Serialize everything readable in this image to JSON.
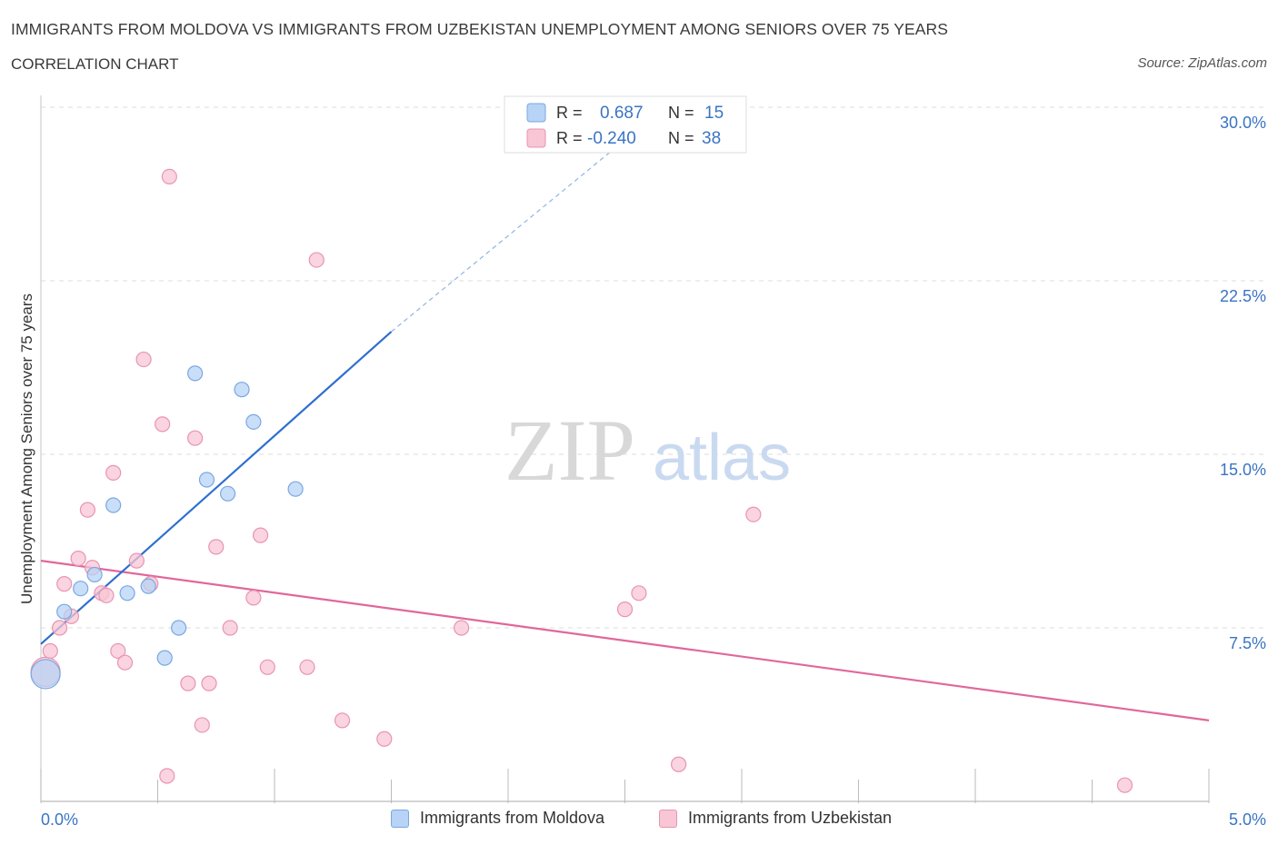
{
  "header": {
    "title": "IMMIGRANTS FROM MOLDOVA VS IMMIGRANTS FROM UZBEKISTAN UNEMPLOYMENT AMONG SENIORS OVER 75 YEARS",
    "subtitle": "CORRELATION CHART",
    "source": "Source: ZipAtlas.com"
  },
  "colors": {
    "moldova_fill": "#b7d3f5",
    "moldova_stroke": "#7aa8e0",
    "moldova_line": "#2e6fcf",
    "uzbekistan_fill": "#f8c6d5",
    "uzbekistan_stroke": "#e895b0",
    "uzbekistan_line": "#e0679a",
    "axis_label": "#3a74c4",
    "grid": "#dddddd"
  },
  "legend": {
    "moldova": {
      "r_label": "R =",
      "r_value": "0.687",
      "n_label": "N =",
      "n_value": "15"
    },
    "uzbekistan": {
      "r_label": "R =",
      "r_value": "-0.240",
      "n_label": "N =",
      "n_value": "38"
    }
  },
  "bottom_legend": {
    "moldova": "Immigrants from Moldova",
    "uzbekistan": "Immigrants from Uzbekistan"
  },
  "watermark": {
    "zip": "ZIP",
    "atlas": "atlas"
  },
  "chart_data": {
    "type": "scatter",
    "title": "IMMIGRANTS FROM MOLDOVA VS IMMIGRANTS FROM UZBEKISTAN UNEMPLOYMENT AMONG SENIORS OVER 75 YEARS",
    "xlabel": "",
    "ylabel": "Unemployment Among Seniors over 75 years",
    "xlim": [
      0,
      5
    ],
    "ylim": [
      0,
      30
    ],
    "x_ticks": [
      "0.0%",
      "5.0%"
    ],
    "y_ticks": [
      {
        "value": 7.5,
        "label": "7.5%"
      },
      {
        "value": 15,
        "label": "15.0%"
      },
      {
        "value": 22.5,
        "label": "22.5%"
      },
      {
        "value": 30,
        "label": "30.0%"
      }
    ],
    "series": [
      {
        "name": "Immigrants from Moldova",
        "r": 0.687,
        "n": 15,
        "points": [
          {
            "x": 0.02,
            "y": 5.5,
            "big": true
          },
          {
            "x": 0.1,
            "y": 8.2
          },
          {
            "x": 0.17,
            "y": 9.2
          },
          {
            "x": 0.23,
            "y": 9.8
          },
          {
            "x": 0.31,
            "y": 12.8
          },
          {
            "x": 0.37,
            "y": 9.0
          },
          {
            "x": 0.46,
            "y": 9.3
          },
          {
            "x": 0.53,
            "y": 6.2
          },
          {
            "x": 0.59,
            "y": 7.5
          },
          {
            "x": 0.66,
            "y": 18.5
          },
          {
            "x": 0.71,
            "y": 13.9
          },
          {
            "x": 0.8,
            "y": 13.3
          },
          {
            "x": 0.86,
            "y": 17.8
          },
          {
            "x": 0.91,
            "y": 16.4
          },
          {
            "x": 1.09,
            "y": 13.5
          }
        ],
        "trend": {
          "x0": 0.0,
          "y0": 6.8,
          "x1": 1.5,
          "y1": 20.3,
          "dash_x1": 2.55,
          "dash_y1": 29.0
        }
      },
      {
        "name": "Immigrants from Uzbekistan",
        "r": -0.24,
        "n": 38,
        "points": [
          {
            "x": 0.02,
            "y": 5.6,
            "big": true
          },
          {
            "x": 0.04,
            "y": 6.5
          },
          {
            "x": 0.08,
            "y": 7.5
          },
          {
            "x": 0.1,
            "y": 9.4
          },
          {
            "x": 0.13,
            "y": 8.0
          },
          {
            "x": 0.16,
            "y": 10.5
          },
          {
            "x": 0.2,
            "y": 12.6
          },
          {
            "x": 0.22,
            "y": 10.1
          },
          {
            "x": 0.26,
            "y": 9.0
          },
          {
            "x": 0.28,
            "y": 8.9
          },
          {
            "x": 0.31,
            "y": 14.2
          },
          {
            "x": 0.33,
            "y": 6.5
          },
          {
            "x": 0.36,
            "y": 6.0
          },
          {
            "x": 0.41,
            "y": 10.4
          },
          {
            "x": 0.44,
            "y": 19.1
          },
          {
            "x": 0.47,
            "y": 9.4
          },
          {
            "x": 0.52,
            "y": 16.3
          },
          {
            "x": 0.55,
            "y": 27.0
          },
          {
            "x": 0.54,
            "y": 1.1
          },
          {
            "x": 0.63,
            "y": 5.1
          },
          {
            "x": 0.66,
            "y": 15.7
          },
          {
            "x": 0.69,
            "y": 3.3
          },
          {
            "x": 0.72,
            "y": 5.1
          },
          {
            "x": 0.75,
            "y": 11.0
          },
          {
            "x": 0.81,
            "y": 7.5
          },
          {
            "x": 0.91,
            "y": 8.8
          },
          {
            "x": 0.94,
            "y": 11.5
          },
          {
            "x": 0.97,
            "y": 5.8
          },
          {
            "x": 1.14,
            "y": 5.8
          },
          {
            "x": 1.18,
            "y": 23.4
          },
          {
            "x": 1.29,
            "y": 3.5
          },
          {
            "x": 1.47,
            "y": 2.7
          },
          {
            "x": 1.8,
            "y": 7.5
          },
          {
            "x": 2.5,
            "y": 8.3
          },
          {
            "x": 2.56,
            "y": 9.0
          },
          {
            "x": 2.73,
            "y": 1.6
          },
          {
            "x": 3.05,
            "y": 12.4
          },
          {
            "x": 4.64,
            "y": 0.7
          }
        ],
        "trend": {
          "x0": 0.0,
          "y0": 10.4,
          "x1": 5.0,
          "y1": 3.5
        }
      }
    ]
  }
}
